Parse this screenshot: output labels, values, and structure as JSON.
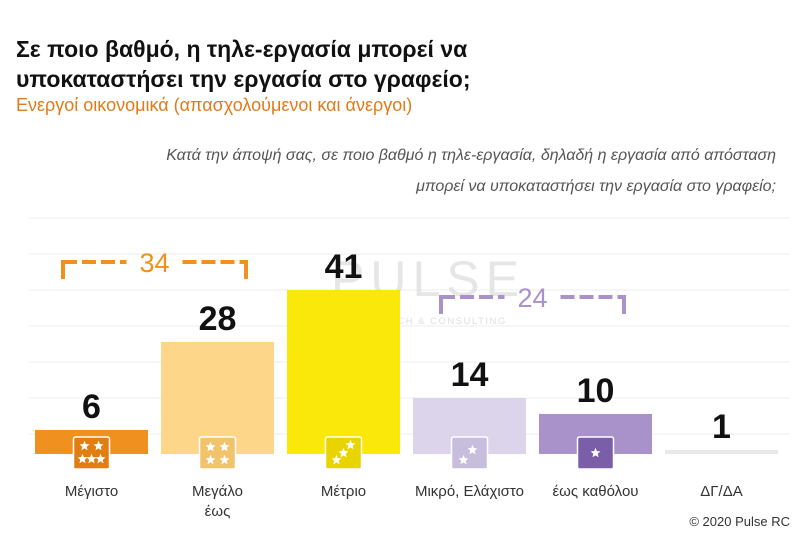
{
  "header": {
    "title_line1": "Σε ποιο βαθμό, η τηλε-εργασία μπορεί να",
    "title_line2": "υποκαταστήσει την εργασία στο γραφείο;",
    "subtitle": "Ενεργοί οικονομικά  (απασχολούμενοι και άνεργοι)",
    "question_line1": "Κατά την άποψή σας, σε ποιο βαθμό η τηλε-εργασία, δηλαδή η εργασία από απόσταση",
    "question_line2": "μπορεί να υποκαταστήσει την εργασία στο γραφείο;"
  },
  "watermark": {
    "name": "PULSE",
    "tagline": "RESEARCH & CONSULTING"
  },
  "footer": {
    "copyright": "© 2020 Pulse RC"
  },
  "chart_data": {
    "type": "bar",
    "categories": [
      "Μέγιστο",
      "Μεγάλο έως",
      "Μέτριο",
      "Μικρό, Ελάχιστο",
      "έως καθόλου",
      "ΔΓ/ΔΑ"
    ],
    "category_lines": [
      [
        "Μέγιστο"
      ],
      [
        "Μεγάλο",
        "έως"
      ],
      [
        "Μέτριο"
      ],
      [
        "Μικρό, Ελάχιστο"
      ],
      [
        "έως καθόλου"
      ],
      [
        "ΔΓ/ΔΑ"
      ]
    ],
    "values": [
      6,
      28,
      41,
      14,
      10,
      1
    ],
    "colors": [
      "#f0901e",
      "#fdd68a",
      "#fae80a",
      "#dcd4ea",
      "#a991c9",
      "#e8e8e8"
    ],
    "icons": [
      "5-stars-icon",
      "4-stars-icon",
      "3-stars-icon",
      "2-stars-icon",
      "1-star-icon",
      ""
    ],
    "icon_stars": [
      5,
      4,
      3,
      2,
      1,
      0
    ],
    "icon_colors": [
      "#e07e12",
      "#f1c36a",
      "#e9d400",
      "#c7bddc",
      "#7a5ea8",
      ""
    ],
    "groups": [
      {
        "label": "34",
        "from": 0,
        "to": 1,
        "color": "#f0901e"
      },
      {
        "label": "24",
        "from": 3,
        "to": 4,
        "color": "#a991c9"
      }
    ],
    "ylim": [
      0,
      45
    ],
    "grid": true,
    "legend": "none"
  }
}
